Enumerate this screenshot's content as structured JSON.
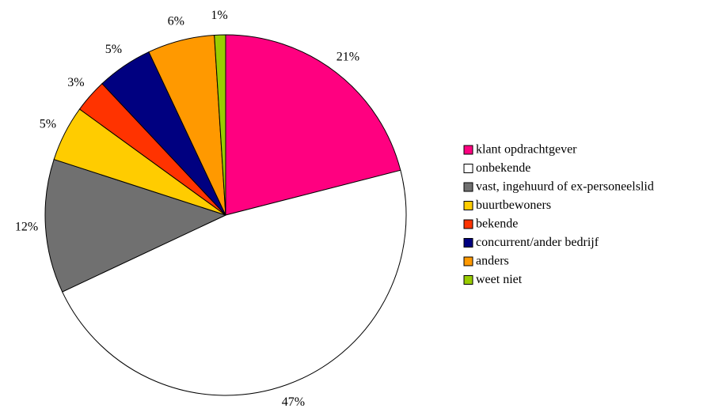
{
  "chart_data": {
    "type": "pie",
    "categories": [
      "klant opdrachtgever",
      "onbekende",
      "vast, ingehuurd of ex-personeelslid",
      "buurtbewoners",
      "bekende",
      "concurrent/ander bedrijf",
      "anders",
      "weet niet"
    ],
    "values": [
      21,
      47,
      12,
      5,
      3,
      5,
      6,
      1
    ],
    "value_labels": [
      "21%",
      "47%",
      "12%",
      "5%",
      "3%",
      "5%",
      "6%",
      "1%"
    ],
    "colors": [
      "#ff0080",
      "#ffffff",
      "#707070",
      "#ffcc00",
      "#ff3300",
      "#000080",
      "#ff9900",
      "#99cc00"
    ],
    "legend": "right"
  }
}
